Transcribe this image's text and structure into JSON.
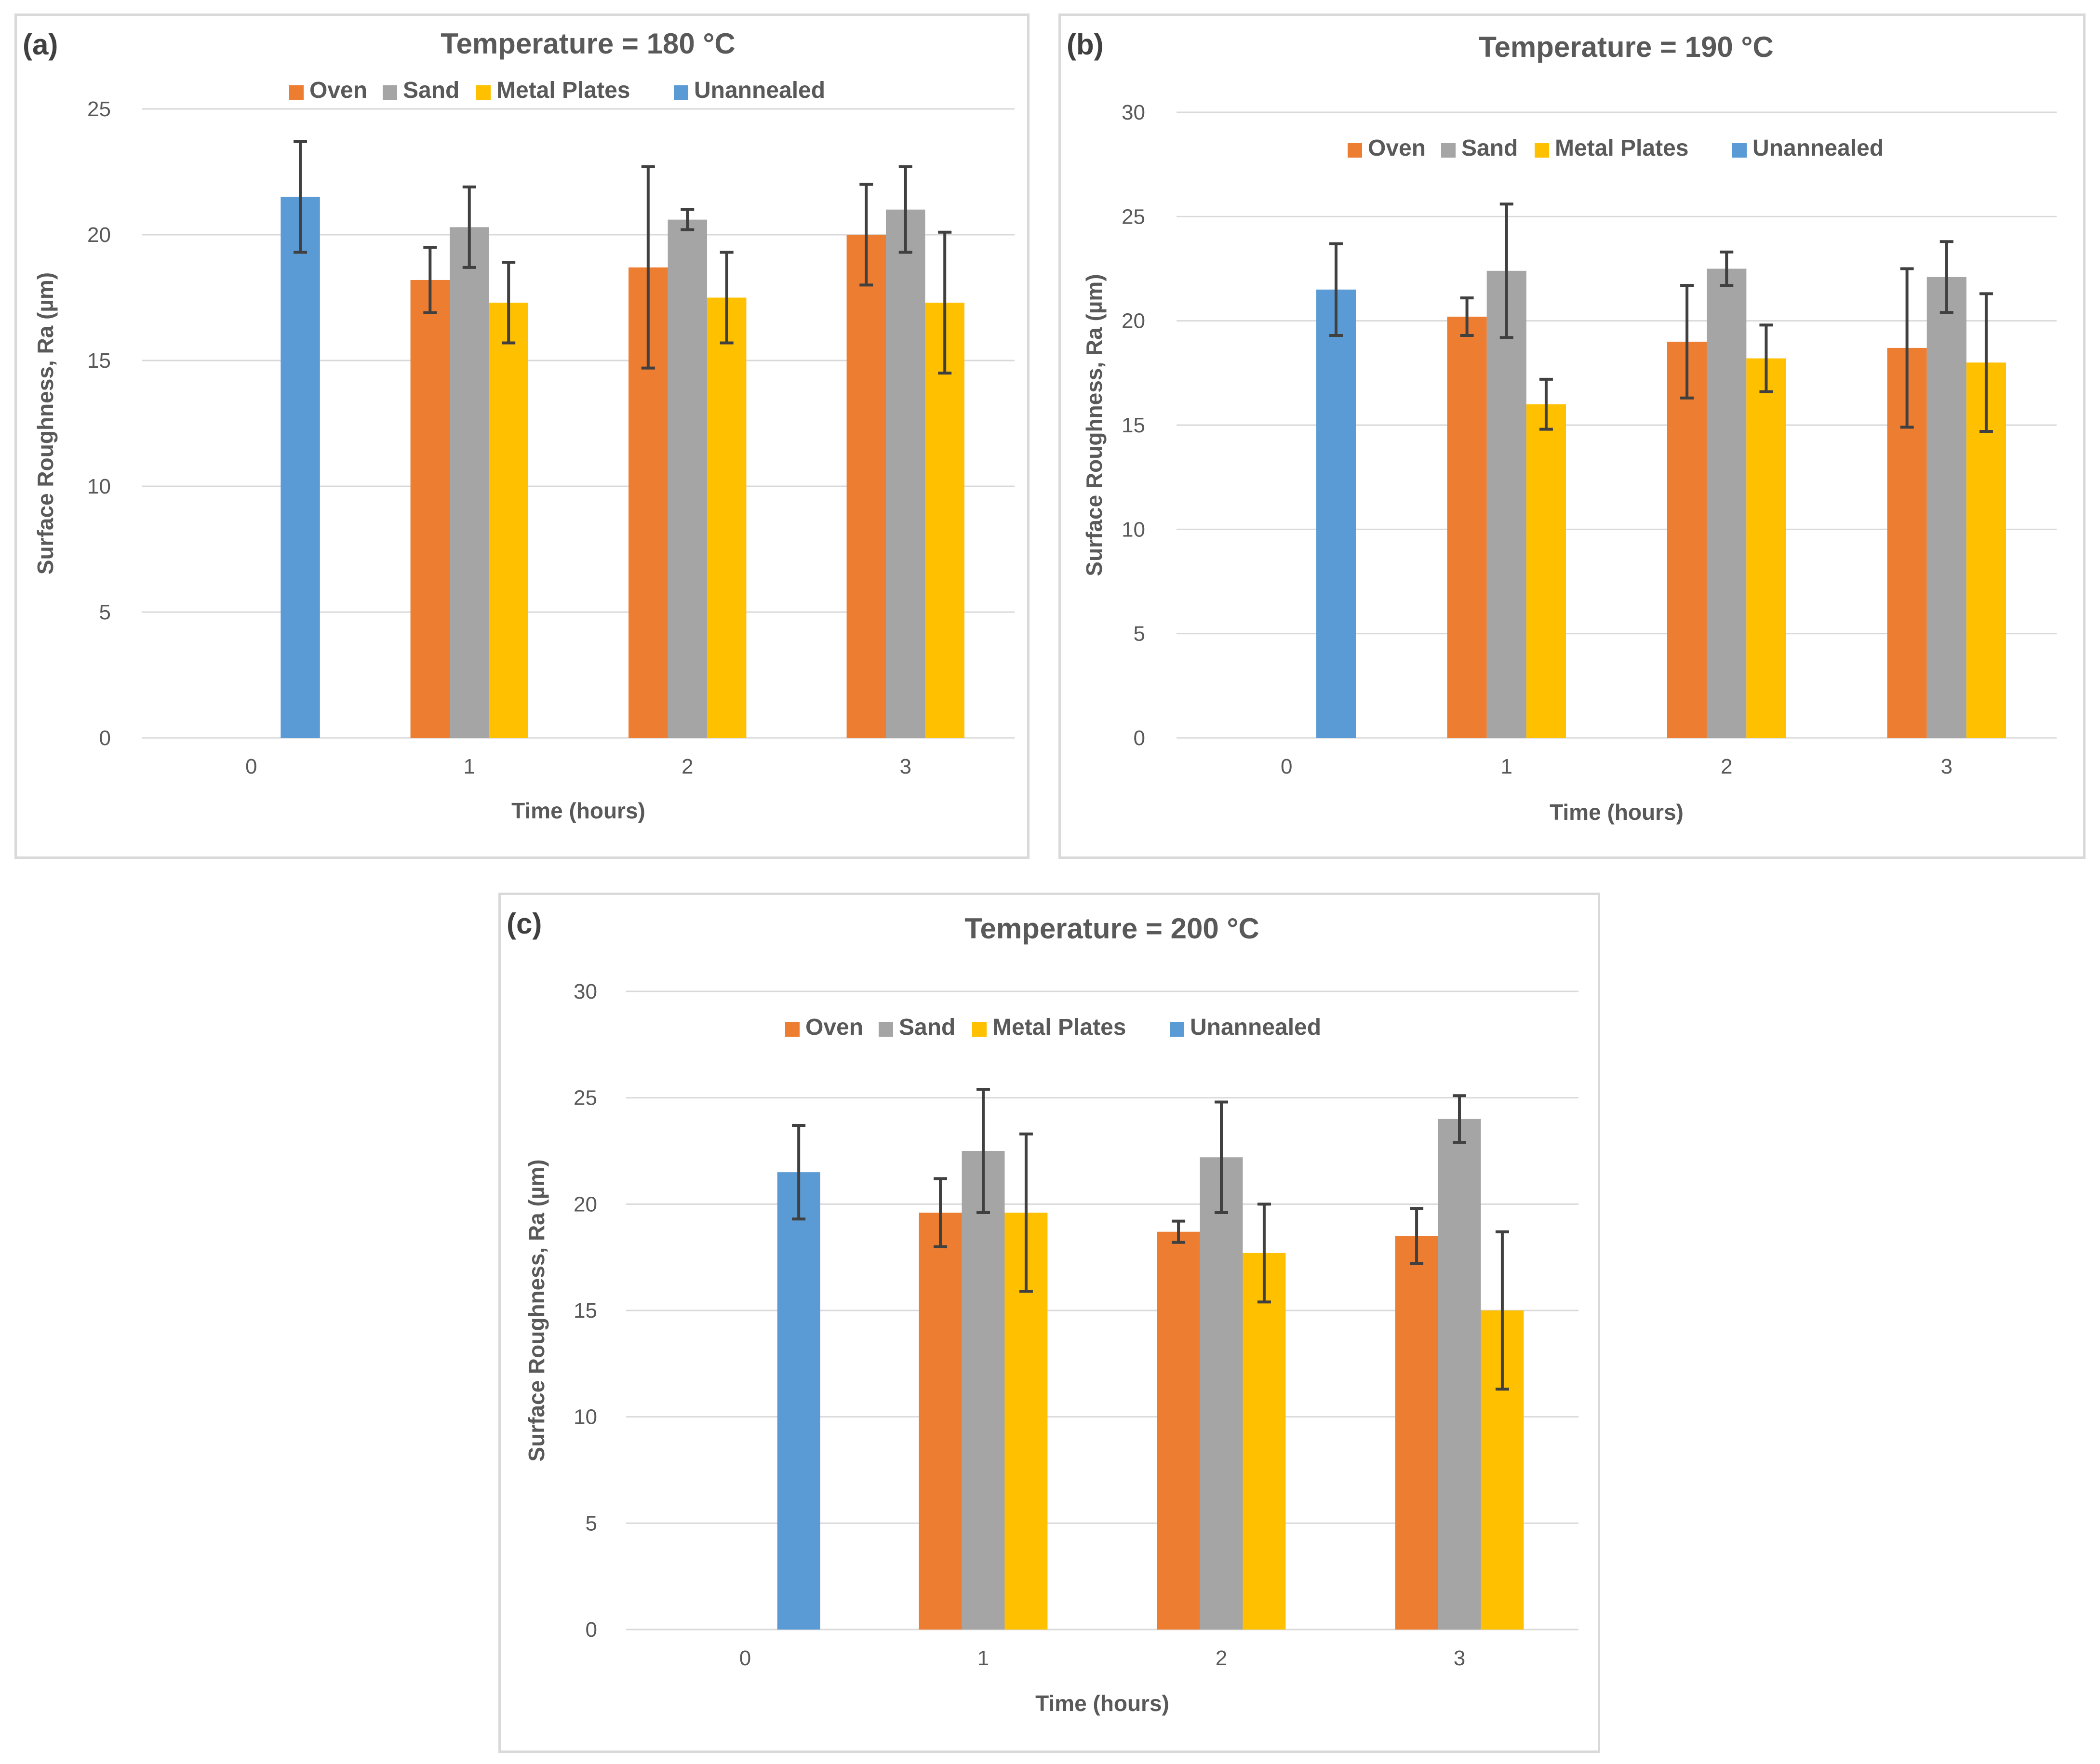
{
  "chart_data": [
    {
      "panel_label": "(a)",
      "title": "Temperature = 180 °C",
      "type": "bar",
      "xlabel": "Time (hours)",
      "ylabel": "Surface Roughness, Ra (µm)",
      "categories": [
        "0",
        "1",
        "2",
        "3"
      ],
      "ylim": [
        0,
        25
      ],
      "yticks": [
        "0",
        "5",
        "10",
        "15",
        "20",
        "25"
      ],
      "legend": [
        "Oven",
        "Sand",
        "Metal Plates",
        "Unannealed"
      ],
      "colors": {
        "Oven": "#ED7D31",
        "Sand": "#A5A5A5",
        "Metal Plates": "#FFC000",
        "Unannealed": "#5B9BD5"
      },
      "unannealed": {
        "value": 21.5,
        "err": 2.2
      },
      "series": [
        {
          "name": "Oven",
          "values": [
            null,
            18.2,
            18.7,
            20.0
          ],
          "errors": [
            null,
            1.3,
            4.0,
            2.0
          ]
        },
        {
          "name": "Sand",
          "values": [
            null,
            20.3,
            20.6,
            21.0
          ],
          "errors": [
            null,
            1.6,
            0.4,
            1.7
          ]
        },
        {
          "name": "Metal Plates",
          "values": [
            null,
            17.3,
            17.5,
            17.3
          ],
          "errors": [
            null,
            1.6,
            1.8,
            2.8
          ]
        }
      ]
    },
    {
      "panel_label": "(b)",
      "title": "Temperature = 190 °C",
      "type": "bar",
      "xlabel": "Time (hours)",
      "ylabel": "Surface Roughness, Ra (µm)",
      "categories": [
        "0",
        "1",
        "2",
        "3"
      ],
      "ylim": [
        0,
        30
      ],
      "yticks": [
        "0",
        "5",
        "10",
        "15",
        "20",
        "25",
        "30"
      ],
      "legend": [
        "Oven",
        "Sand",
        "Metal Plates",
        "Unannealed"
      ],
      "colors": {
        "Oven": "#ED7D31",
        "Sand": "#A5A5A5",
        "Metal Plates": "#FFC000",
        "Unannealed": "#5B9BD5"
      },
      "unannealed": {
        "value": 21.5,
        "err": 2.2
      },
      "series": [
        {
          "name": "Oven",
          "values": [
            null,
            20.2,
            19.0,
            18.7
          ],
          "errors": [
            null,
            0.9,
            2.7,
            3.8
          ]
        },
        {
          "name": "Sand",
          "values": [
            null,
            22.4,
            22.5,
            22.1
          ],
          "errors": [
            null,
            3.2,
            0.8,
            1.7
          ]
        },
        {
          "name": "Metal Plates",
          "values": [
            null,
            16.0,
            18.2,
            18.0
          ],
          "errors": [
            null,
            1.2,
            1.6,
            3.3
          ]
        }
      ]
    },
    {
      "panel_label": "(c)",
      "title": "Temperature = 200 °C",
      "type": "bar",
      "xlabel": "Time (hours)",
      "ylabel": "Surface Roughness, Ra (µm)",
      "categories": [
        "0",
        "1",
        "2",
        "3"
      ],
      "ylim": [
        0,
        30
      ],
      "yticks": [
        "0",
        "5",
        "10",
        "15",
        "20",
        "25",
        "30"
      ],
      "legend": [
        "Oven",
        "Sand",
        "Metal Plates",
        "Unannealed"
      ],
      "colors": {
        "Oven": "#ED7D31",
        "Sand": "#A5A5A5",
        "Metal Plates": "#FFC000",
        "Unannealed": "#5B9BD5"
      },
      "unannealed": {
        "value": 21.5,
        "err": 2.2
      },
      "series": [
        {
          "name": "Oven",
          "values": [
            null,
            19.6,
            18.7,
            18.5
          ],
          "errors": [
            null,
            1.6,
            0.5,
            1.3
          ]
        },
        {
          "name": "Sand",
          "values": [
            null,
            22.5,
            22.2,
            24.0
          ],
          "errors": [
            null,
            2.9,
            2.6,
            1.1
          ]
        },
        {
          "name": "Metal Plates",
          "values": [
            null,
            19.6,
            17.7,
            15.0
          ],
          "errors": [
            null,
            3.7,
            2.3,
            3.7
          ]
        }
      ]
    }
  ]
}
